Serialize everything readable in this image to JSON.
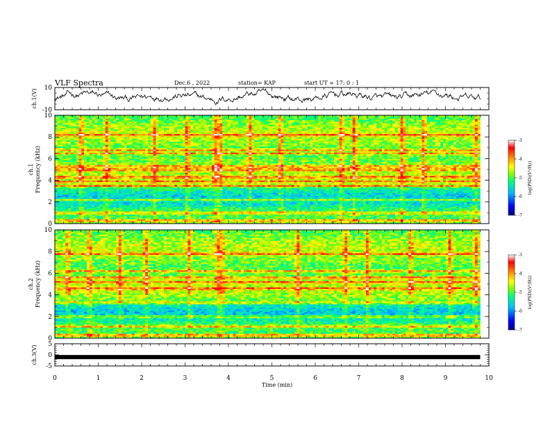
{
  "header": {
    "title": "VLF Spectra",
    "date": "Dec.6 , 2022",
    "station": "station= KAP",
    "start": "start UT = 17: 0 : 1"
  },
  "colors": {
    "spectrum_stops": [
      "#000080",
      "#0000ff",
      "#00bfff",
      "#00ff80",
      "#80ff00",
      "#ffff00",
      "#ff8000",
      "#ff0000",
      "#ffffff"
    ],
    "waveform": "#000000"
  },
  "chart_data": [
    {
      "id": "ch1-waveform",
      "type": "line",
      "ylabel": "ch.1(V)",
      "ylim": [
        -10,
        10
      ],
      "xlim": [
        0,
        10
      ],
      "y_ticks": [
        "10",
        "-10"
      ],
      "notes": "noisy waveform fluctuating roughly between -5 and 8 V over 0 to 9.8 min"
    },
    {
      "id": "ch1-spectrogram",
      "type": "heatmap",
      "ylabel": "ch.1\nFrequency (kHz)",
      "ylabel_lines": [
        "ch.1",
        "Frequency (kHz)"
      ],
      "ylim": [
        0,
        10
      ],
      "xlim": [
        0,
        10
      ],
      "y_ticks": [
        "0",
        "2",
        "4",
        "6",
        "8",
        "10"
      ],
      "colorbar": {
        "range": [
          -7,
          -3
        ],
        "ticks": [
          "-3",
          "-4",
          "-5",
          "-6",
          "-7"
        ],
        "label": "log(PSD)(V²/Hz)"
      },
      "time_extent_min": 9.8,
      "bands_khz": [
        0.3,
        1.0,
        2.2,
        3.5,
        3.9,
        4.3,
        5.0,
        5.3,
        6.5,
        6.8,
        8.2
      ],
      "bursts_min": [
        0.6,
        1.2,
        2.3,
        3.05,
        3.7,
        3.8,
        4.5,
        5.2,
        6.6,
        6.9,
        8.0,
        8.5,
        9.7
      ]
    },
    {
      "id": "ch2-spectrogram",
      "type": "heatmap",
      "ylabel": "ch.2\nFrequency (kHz)",
      "ylabel_lines": [
        "ch.2",
        "Frequency (kHz)"
      ],
      "ylim": [
        0,
        10
      ],
      "xlim": [
        0,
        10
      ],
      "y_ticks": [
        "0",
        "2",
        "4",
        "6",
        "8",
        "10"
      ],
      "colorbar": {
        "range": [
          -7,
          -3
        ],
        "ticks": [
          "-3",
          "-4",
          "-5",
          "-6",
          "-7"
        ],
        "label": "log(PSD)(V²/Hz)"
      },
      "time_extent_min": 9.8,
      "bands_khz": [
        0.3,
        1.1,
        2.0,
        3.3,
        4.6,
        5.2,
        5.6,
        6.2,
        7.8
      ],
      "bursts_min": [
        0.3,
        0.8,
        1.5,
        2.1,
        3.1,
        3.75,
        3.85,
        5.6,
        6.7,
        7.2,
        8.2,
        9.1,
        9.7
      ]
    },
    {
      "id": "ch3-waveform",
      "type": "line",
      "ylabel": "ch.3(V)",
      "ylim": [
        -5,
        5
      ],
      "xlim": [
        0,
        10
      ],
      "y_ticks": [
        "5",
        "0",
        "-5"
      ],
      "notes": "flat thick line near -1 V spanning 0 to 9.8 min"
    }
  ],
  "x_axis": {
    "label": "Time (min)",
    "ticks": [
      "0",
      "1",
      "2",
      "3",
      "4",
      "5",
      "6",
      "7",
      "8",
      "9",
      "10"
    ]
  }
}
